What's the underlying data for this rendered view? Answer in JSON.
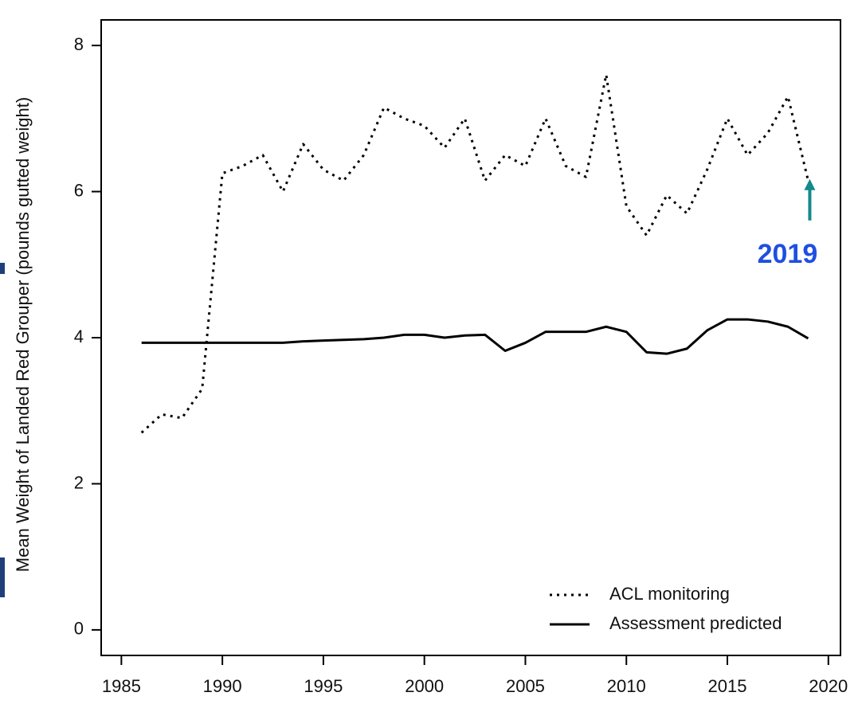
{
  "chart_data": {
    "type": "line",
    "y_label": "Mean Weight of Landed Red Grouper (pounds gutted weight)",
    "x": [
      1986,
      1987,
      1988,
      1989,
      1990,
      1991,
      1992,
      1993,
      1994,
      1995,
      1996,
      1997,
      1998,
      1999,
      2000,
      2001,
      2002,
      2003,
      2004,
      2005,
      2006,
      2007,
      2008,
      2009,
      2010,
      2011,
      2012,
      2013,
      2014,
      2015,
      2016,
      2017,
      2018,
      2019
    ],
    "series": [
      {
        "name": "ACL monitoring",
        "color": "#000000",
        "style": "dotted",
        "values": [
          2.7,
          2.95,
          2.9,
          3.3,
          6.25,
          6.35,
          6.5,
          6.0,
          6.65,
          6.3,
          6.15,
          6.5,
          7.15,
          7.0,
          6.9,
          6.6,
          7.0,
          6.15,
          6.5,
          6.35,
          7.0,
          6.35,
          6.2,
          7.6,
          5.8,
          5.4,
          5.95,
          5.7,
          6.3,
          7.0,
          6.5,
          6.8,
          7.3,
          6.15
        ]
      },
      {
        "name": "Assessment predicted",
        "color": "#000000",
        "style": "solid",
        "values": [
          3.93,
          3.93,
          3.93,
          3.93,
          3.93,
          3.93,
          3.93,
          3.93,
          3.95,
          3.96,
          3.97,
          3.98,
          4.0,
          4.04,
          4.04,
          4.0,
          4.03,
          4.04,
          3.82,
          3.93,
          4.08,
          4.08,
          4.08,
          4.15,
          4.08,
          3.8,
          3.78,
          3.85,
          4.1,
          4.25,
          4.25,
          4.22,
          4.15,
          3.99
        ]
      }
    ],
    "xlim": [
      1984,
      2020.6
    ],
    "ylim": [
      -0.35,
      8.35
    ],
    "xticks": [
      1985,
      1990,
      1995,
      2000,
      2005,
      2010,
      2015,
      2020
    ],
    "yticks": [
      0,
      2,
      4,
      6,
      8
    ],
    "legend": "bottom-right",
    "annotation": {
      "text": "2019",
      "color": "#1f4fe0",
      "arrow_color": "#138a8a"
    }
  }
}
